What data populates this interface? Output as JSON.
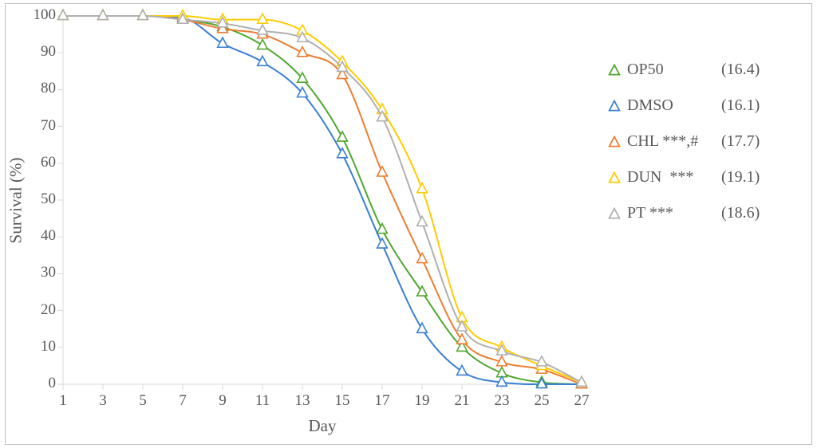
{
  "chart": {
    "type": "line",
    "background_color": "#ffffff",
    "outer_border_color": "#bfbfbf",
    "axis_line_color": "#d9d9d9",
    "tick_color": "#d9d9d9",
    "text_color": "#595959",
    "tick_fontsize": 19,
    "label_fontsize": 21,
    "xlabel": "Day",
    "ylabel": "Survival (%)",
    "x_ticks": [
      1,
      3,
      5,
      7,
      9,
      11,
      13,
      15,
      17,
      19,
      21,
      23,
      25,
      27
    ],
    "y_ticks": [
      0,
      10,
      20,
      30,
      40,
      50,
      60,
      70,
      80,
      90,
      100
    ],
    "xlim": [
      1,
      27
    ],
    "ylim": [
      0,
      100
    ],
    "marker": "triangle-open",
    "marker_size": 11,
    "line_width": 2,
    "series": [
      {
        "name": "OP50",
        "legend_label": "OP50",
        "value_label": "(16.4)",
        "color": "#4ea72e",
        "x": [
          1,
          3,
          5,
          7,
          9,
          11,
          13,
          15,
          17,
          19,
          21,
          23,
          25,
          27
        ],
        "y": [
          100,
          100,
          100,
          99,
          97,
          92,
          83,
          67,
          42,
          25,
          10,
          3,
          0.5,
          0
        ]
      },
      {
        "name": "DMSO",
        "legend_label": "DMSO",
        "value_label": "(16.1)",
        "color": "#3a7fd5",
        "x": [
          1,
          3,
          5,
          7,
          9,
          11,
          13,
          15,
          17,
          19,
          21,
          23,
          25,
          27
        ],
        "y": [
          100,
          100,
          100,
          99.5,
          92.5,
          87.5,
          79,
          62.5,
          38,
          15,
          3.5,
          0.5,
          0,
          0
        ]
      },
      {
        "name": "CHL",
        "legend_label": "CHL ***,#",
        "value_label": "(17.7)",
        "color": "#ed7d31",
        "x": [
          1,
          3,
          5,
          7,
          9,
          11,
          13,
          15,
          17,
          19,
          21,
          23,
          25,
          27
        ],
        "y": [
          100,
          100,
          100,
          99,
          96.5,
          95,
          90,
          84,
          57.5,
          34,
          12,
          6,
          4,
          0
        ]
      },
      {
        "name": "DUN",
        "legend_label": "DUN  ***",
        "value_label": "(19.1)",
        "color": "#ffcc00",
        "x": [
          1,
          3,
          5,
          7,
          9,
          11,
          13,
          15,
          17,
          19,
          21,
          23,
          25,
          27
        ],
        "y": [
          100,
          100,
          100,
          100,
          99,
          99,
          96,
          87.5,
          74.5,
          53,
          18,
          10,
          5,
          0.5
        ]
      },
      {
        "name": "PT",
        "legend_label": "PT ***",
        "value_label": "(18.6)",
        "color": "#b0b0b0",
        "x": [
          1,
          3,
          5,
          7,
          9,
          11,
          13,
          15,
          17,
          19,
          21,
          23,
          25,
          27
        ],
        "y": [
          100,
          100,
          100,
          99,
          98,
          96,
          94,
          86,
          72.5,
          44,
          15.5,
          9,
          6,
          0.5
        ]
      }
    ]
  }
}
